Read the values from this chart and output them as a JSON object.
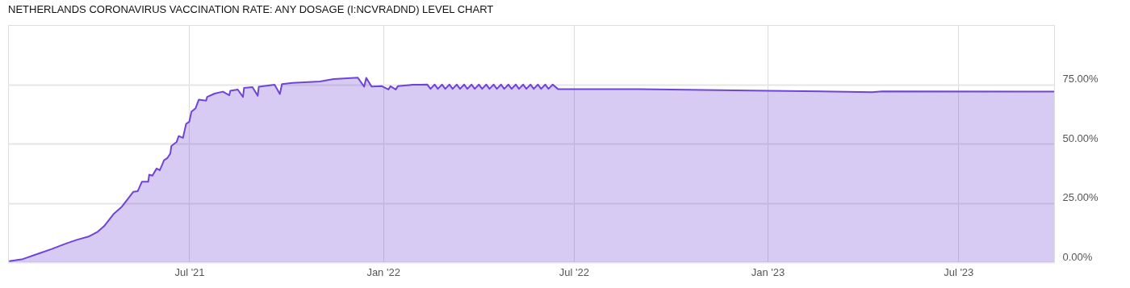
{
  "chart_data": {
    "type": "area",
    "title": "NETHERLANDS CORONAVIRUS VACCINATION RATE: ANY DOSAGE (I:NCVRADND) LEVEL CHART",
    "x": [
      "2021-01-11",
      "2021-01-24",
      "2021-02-07",
      "2021-02-20",
      "2021-03-05",
      "2021-03-16",
      "2021-03-28",
      "2021-04-05",
      "2021-04-11",
      "2021-04-20",
      "2021-04-28",
      "2021-05-09",
      "2021-05-13",
      "2021-05-17",
      "2021-05-23",
      "2021-05-24",
      "2021-05-27",
      "2021-05-31",
      "2021-06-03",
      "2021-06-05",
      "2021-06-07",
      "2021-06-10",
      "2021-06-13",
      "2021-06-14",
      "2021-06-19",
      "2021-06-21",
      "2021-06-25",
      "2021-06-28",
      "2021-07-01",
      "2021-07-03",
      "2021-07-07",
      "2021-07-10",
      "2021-07-17",
      "2021-07-18",
      "2021-07-25",
      "2021-08-02",
      "2021-08-08",
      "2021-08-09",
      "2021-08-16",
      "2021-08-21",
      "2021-08-22",
      "2021-08-30",
      "2021-09-04",
      "2021-09-05",
      "2021-09-20",
      "2021-09-25",
      "2021-09-27",
      "2021-10-07",
      "2021-11-02",
      "2021-11-15",
      "2021-12-08",
      "2021-12-14",
      "2021-12-16",
      "2021-12-21",
      "2021-12-31",
      "2022-01-06",
      "2022-01-08",
      "2022-01-13",
      "2022-01-15",
      "2022-01-21",
      "2022-01-29",
      "2022-02-05",
      "2022-02-12",
      "2022-02-15",
      "2022-02-19",
      "2022-02-22",
      "2022-02-26",
      "2022-03-01",
      "2022-03-05",
      "2022-03-08",
      "2022-03-12",
      "2022-03-15",
      "2022-03-19",
      "2022-03-22",
      "2022-03-26",
      "2022-03-29",
      "2022-04-02",
      "2022-04-05",
      "2022-04-09",
      "2022-04-12",
      "2022-04-16",
      "2022-04-19",
      "2022-04-23",
      "2022-04-26",
      "2022-04-30",
      "2022-05-03",
      "2022-05-07",
      "2022-05-10",
      "2022-05-14",
      "2022-05-17",
      "2022-05-21",
      "2022-05-24",
      "2022-05-28",
      "2022-05-31",
      "2022-06-04",
      "2022-06-07",
      "2022-06-11",
      "2022-06-16",
      "2022-09-01",
      "2023-01-01",
      "2023-04-10",
      "2023-04-20",
      "2023-09-30"
    ],
    "series": [
      {
        "color": "#7044d6",
        "values": [
          0.4,
          1.3,
          3.5,
          5.5,
          7.7,
          9.4,
          10.9,
          12.8,
          15.1,
          20.2,
          23.4,
          29.7,
          29.9,
          33.9,
          33.9,
          36.9,
          36.5,
          39.5,
          38.8,
          40.8,
          43.0,
          43.8,
          45.8,
          49.0,
          50.7,
          53.2,
          52.4,
          58.3,
          59.2,
          63.4,
          64.9,
          68.5,
          68.1,
          69.7,
          71.1,
          71.9,
          70.4,
          72.3,
          72.8,
          69.7,
          73.5,
          73.8,
          70.2,
          74.0,
          74.8,
          70.9,
          75.1,
          75.6,
          76.2,
          77.2,
          77.8,
          74.0,
          77.7,
          74.1,
          74.2,
          72.8,
          74.2,
          72.8,
          74.2,
          74.5,
          74.8,
          74.8,
          74.9,
          73.1,
          74.9,
          73.1,
          74.9,
          73.1,
          74.9,
          73.1,
          74.9,
          73.1,
          74.9,
          73.1,
          74.9,
          73.1,
          74.9,
          73.1,
          74.9,
          73.1,
          74.9,
          73.1,
          74.9,
          73.1,
          74.9,
          73.1,
          74.9,
          73.1,
          74.9,
          73.1,
          74.9,
          73.1,
          74.9,
          73.1,
          74.9,
          73.1,
          74.9,
          73.0,
          73.0,
          72.3,
          71.7,
          72.0,
          71.9
        ]
      }
    ],
    "xlim": [
      "2021-01-10",
      "2023-09-30"
    ],
    "xticks": [
      {
        "value": "2021-07-01",
        "label": "Jul '21"
      },
      {
        "value": "2022-01-01",
        "label": "Jan '22"
      },
      {
        "value": "2022-07-01",
        "label": "Jul '22"
      },
      {
        "value": "2023-01-01",
        "label": "Jan '23"
      },
      {
        "value": "2023-07-01",
        "label": "Jul '23"
      }
    ],
    "ylim": [
      0,
      100
    ],
    "yticks": [
      {
        "value": 0,
        "label": "0.00%"
      },
      {
        "value": 25,
        "label": "25.00%"
      },
      {
        "value": 50,
        "label": "50.00%"
      },
      {
        "value": 75,
        "label": "75.00%"
      }
    ],
    "grid": true
  }
}
